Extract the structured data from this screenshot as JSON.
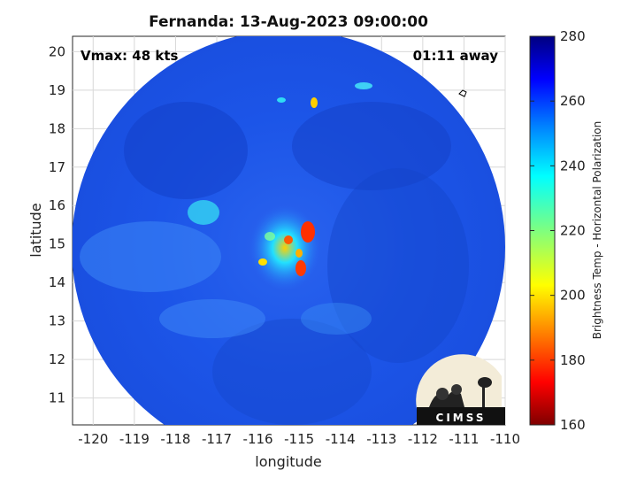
{
  "title": "Fernanda: 13-Aug-2023 09:00:00",
  "overlay": {
    "vmax": "Vmax: 48 kts",
    "away": "01:11 away"
  },
  "axes": {
    "xlabel": "longitude",
    "ylabel": "latitude",
    "xlim": [
      -120.5,
      -110
    ],
    "ylim": [
      10.3,
      20.4
    ],
    "xticks": [
      "-120",
      "-119",
      "-118",
      "-117",
      "-116",
      "-115",
      "-114",
      "-113",
      "-112",
      "-111",
      "-110"
    ],
    "yticks": [
      "11",
      "12",
      "13",
      "14",
      "15",
      "16",
      "17",
      "18",
      "19",
      "20"
    ],
    "grid": true
  },
  "colorbar": {
    "label": "Brightness Temp - Horizontal Polarization",
    "ticks": [
      "160",
      "180",
      "200",
      "220",
      "240",
      "260",
      "280"
    ],
    "range": [
      160,
      280
    ],
    "colormap": "jet"
  },
  "logo": {
    "text": "CIMSS"
  },
  "colors": {
    "background_field": "#1a55e6",
    "warm_field": "#0f3fc4",
    "cold_core": "#ff2a00",
    "swath_edge": "#ffffff"
  }
}
